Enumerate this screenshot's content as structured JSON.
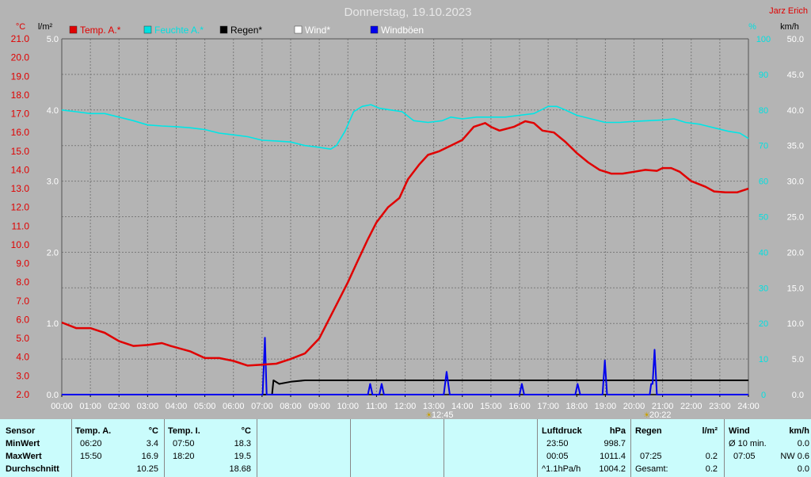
{
  "header": {
    "title": "Donnerstag, 19.10.2023",
    "author": "Jarz Erich"
  },
  "axis_units": {
    "left_temp": "°C",
    "left_rain": "l/m²",
    "right_hum": "%",
    "right_wind": "km/h"
  },
  "legend": [
    {
      "label": "Temp. A.*",
      "color": "#e00000"
    },
    {
      "label": "Feuchte A.*",
      "color": "#00e0e0"
    },
    {
      "label": "Regen*",
      "color": "#000000"
    },
    {
      "label": "Wind*",
      "color": "#ffffff"
    },
    {
      "label": "Windböen",
      "color": "#0000ee"
    }
  ],
  "sun_markers": {
    "sunrise": "12:45",
    "sunset": "20:22"
  },
  "colors": {
    "temp": "#e00000",
    "humidity": "#00e6e6",
    "rain": "#000000",
    "gust": "#0000ee",
    "plot_bg": "#b4b4b4",
    "table_bg": "#cafcfc",
    "title": "#e8e8e8",
    "axis_red": "#e00000",
    "axis_cyan": "#00e0e0"
  },
  "chart_data": {
    "type": "line",
    "title": "Donnerstag, 19.10.2023",
    "x_ticks": [
      "00:00",
      "01:00",
      "02:00",
      "03:00",
      "04:00",
      "05:00",
      "06:00",
      "07:00",
      "08:00",
      "09:00",
      "10:00",
      "11:00",
      "12:00",
      "13:00",
      "14:00",
      "15:00",
      "16:00",
      "17:00",
      "18:00",
      "19:00",
      "20:00",
      "21:00",
      "22:00",
      "23:00",
      "24:00"
    ],
    "x_range_hours": [
      0,
      24
    ],
    "temp_axis": {
      "unit": "°C",
      "range": [
        2.0,
        21.0
      ],
      "ticks": [
        "21.0",
        "20.0",
        "19.0",
        "18.0",
        "17.0",
        "16.0",
        "15.0",
        "14.0",
        "13.0",
        "12.0",
        "11.0",
        "10.0",
        "9.0",
        "8.0",
        "7.0",
        "6.0",
        "5.0",
        "4.0",
        "3.0",
        "2.0"
      ]
    },
    "rain_axis": {
      "unit": "l/m²",
      "range": [
        0.0,
        5.0
      ],
      "ticks": [
        "5.0",
        "4.0",
        "3.0",
        "2.0",
        "1.0",
        "0.0"
      ]
    },
    "humidity_axis": {
      "unit": "%",
      "range": [
        0,
        100
      ],
      "ticks": [
        "100",
        "90",
        "80",
        "70",
        "60",
        "50",
        "40",
        "30",
        "20",
        "10",
        "0"
      ]
    },
    "wind_axis": {
      "unit": "km/h",
      "range": [
        0.0,
        50.0
      ],
      "ticks": [
        "50.0",
        "45.0",
        "40.0",
        "35.0",
        "30.0",
        "25.0",
        "20.0",
        "15.0",
        "10.0",
        "5.0",
        "0.0"
      ]
    },
    "grid": true,
    "series": [
      {
        "name": "Temp. A.*",
        "axis": "temp",
        "points": [
          [
            0.0,
            5.85
          ],
          [
            0.5,
            5.55
          ],
          [
            1.0,
            5.55
          ],
          [
            1.5,
            5.3
          ],
          [
            2.0,
            4.85
          ],
          [
            2.5,
            4.6
          ],
          [
            3.0,
            4.65
          ],
          [
            3.5,
            4.75
          ],
          [
            3.8,
            4.6
          ],
          [
            4.5,
            4.3
          ],
          [
            5.0,
            3.95
          ],
          [
            5.5,
            3.95
          ],
          [
            6.0,
            3.8
          ],
          [
            6.5,
            3.55
          ],
          [
            7.0,
            3.6
          ],
          [
            7.5,
            3.65
          ],
          [
            8.0,
            3.9
          ],
          [
            8.5,
            4.2
          ],
          [
            9.0,
            5.0
          ],
          [
            9.5,
            6.5
          ],
          [
            10.0,
            8.0
          ],
          [
            10.3,
            9.0
          ],
          [
            10.7,
            10.3
          ],
          [
            11.0,
            11.2
          ],
          [
            11.4,
            12.0
          ],
          [
            11.8,
            12.5
          ],
          [
            12.1,
            13.5
          ],
          [
            12.5,
            14.3
          ],
          [
            12.8,
            14.8
          ],
          [
            13.2,
            15.0
          ],
          [
            13.6,
            15.3
          ],
          [
            14.0,
            15.6
          ],
          [
            14.4,
            16.3
          ],
          [
            14.8,
            16.5
          ],
          [
            15.0,
            16.3
          ],
          [
            15.3,
            16.1
          ],
          [
            15.8,
            16.3
          ],
          [
            16.2,
            16.6
          ],
          [
            16.5,
            16.5
          ],
          [
            16.8,
            16.1
          ],
          [
            17.2,
            16.0
          ],
          [
            17.6,
            15.5
          ],
          [
            18.0,
            14.9
          ],
          [
            18.4,
            14.4
          ],
          [
            18.8,
            14.0
          ],
          [
            19.2,
            13.8
          ],
          [
            19.6,
            13.8
          ],
          [
            20.0,
            13.9
          ],
          [
            20.4,
            14.0
          ],
          [
            20.8,
            13.95
          ],
          [
            21.0,
            14.1
          ],
          [
            21.3,
            14.1
          ],
          [
            21.6,
            13.9
          ],
          [
            22.0,
            13.4
          ],
          [
            22.5,
            13.1
          ],
          [
            22.8,
            12.85
          ],
          [
            23.2,
            12.8
          ],
          [
            23.6,
            12.8
          ],
          [
            24.0,
            13.0
          ]
        ]
      },
      {
        "name": "Feuchte A.*",
        "axis": "humidity",
        "points": [
          [
            0.0,
            80.0
          ],
          [
            0.5,
            79.5
          ],
          [
            1.0,
            79.0
          ],
          [
            1.5,
            79.0
          ],
          [
            2.0,
            78.0
          ],
          [
            2.5,
            77.0
          ],
          [
            3.0,
            75.8
          ],
          [
            3.5,
            75.5
          ],
          [
            4.0,
            75.3
          ],
          [
            4.5,
            75.0
          ],
          [
            5.0,
            74.5
          ],
          [
            5.5,
            73.5
          ],
          [
            6.0,
            73.0
          ],
          [
            6.5,
            72.5
          ],
          [
            7.0,
            71.5
          ],
          [
            7.5,
            71.3
          ],
          [
            8.0,
            71.0
          ],
          [
            8.5,
            70.0
          ],
          [
            9.0,
            69.5
          ],
          [
            9.4,
            69.0
          ],
          [
            9.6,
            70.0
          ],
          [
            9.9,
            74.0
          ],
          [
            10.2,
            79.5
          ],
          [
            10.5,
            81.0
          ],
          [
            10.8,
            81.5
          ],
          [
            11.1,
            80.5
          ],
          [
            11.5,
            80.0
          ],
          [
            11.9,
            79.5
          ],
          [
            12.3,
            77.0
          ],
          [
            12.8,
            76.5
          ],
          [
            13.3,
            77.0
          ],
          [
            13.6,
            78.0
          ],
          [
            14.0,
            77.5
          ],
          [
            14.5,
            78.0
          ],
          [
            15.0,
            78.0
          ],
          [
            15.5,
            78.0
          ],
          [
            16.0,
            78.5
          ],
          [
            16.5,
            79.0
          ],
          [
            17.0,
            81.0
          ],
          [
            17.3,
            81.0
          ],
          [
            17.6,
            80.0
          ],
          [
            18.0,
            78.5
          ],
          [
            18.5,
            77.5
          ],
          [
            19.0,
            76.5
          ],
          [
            19.5,
            76.5
          ],
          [
            20.0,
            76.8
          ],
          [
            20.5,
            77.0
          ],
          [
            21.0,
            77.2
          ],
          [
            21.4,
            77.5
          ],
          [
            21.8,
            76.5
          ],
          [
            22.3,
            76.0
          ],
          [
            22.8,
            75.0
          ],
          [
            23.3,
            74.0
          ],
          [
            23.7,
            73.5
          ],
          [
            24.0,
            72.0
          ]
        ]
      },
      {
        "name": "Regen*",
        "axis": "rain",
        "points": [
          [
            0.0,
            0.0
          ],
          [
            7.35,
            0.0
          ],
          [
            7.4,
            0.2
          ],
          [
            7.6,
            0.15
          ],
          [
            8.0,
            0.18
          ],
          [
            8.5,
            0.2
          ],
          [
            9.0,
            0.2
          ],
          [
            24.0,
            0.2
          ]
        ]
      },
      {
        "name": "Windböen",
        "axis": "wind",
        "points": [
          [
            0.0,
            0
          ],
          [
            7.02,
            0
          ],
          [
            7.1,
            8.0
          ],
          [
            7.16,
            0
          ],
          [
            10.7,
            0
          ],
          [
            10.78,
            1.5
          ],
          [
            10.86,
            0
          ],
          [
            11.1,
            0
          ],
          [
            11.18,
            1.5
          ],
          [
            11.26,
            0
          ],
          [
            13.35,
            0
          ],
          [
            13.45,
            3.2
          ],
          [
            13.56,
            0
          ],
          [
            16.0,
            0
          ],
          [
            16.08,
            1.5
          ],
          [
            16.16,
            0
          ],
          [
            17.95,
            0
          ],
          [
            18.03,
            1.5
          ],
          [
            18.12,
            0
          ],
          [
            18.9,
            0
          ],
          [
            18.98,
            4.8
          ],
          [
            19.06,
            0
          ],
          [
            20.55,
            0
          ],
          [
            20.6,
            1.5
          ],
          [
            20.65,
            1.5
          ],
          [
            20.72,
            6.3
          ],
          [
            20.8,
            0
          ],
          [
            24.0,
            0
          ]
        ]
      }
    ]
  },
  "stats": {
    "sensor": {
      "header": "Sensor",
      "rows": [
        "MinWert",
        "MaxWert",
        "Durchschnitt"
      ]
    },
    "temp_a": {
      "header": "Temp. A.",
      "unit": "°C",
      "rows": [
        {
          "time": "06:20",
          "value": "3.4"
        },
        {
          "time": "15:50",
          "value": "16.9"
        },
        {
          "time": "",
          "value": "10.25"
        }
      ]
    },
    "temp_i": {
      "header": "Temp. I.",
      "unit": "°C",
      "rows": [
        {
          "time": "07:50",
          "value": "18.3"
        },
        {
          "time": "18:20",
          "value": "19.5"
        },
        {
          "time": "",
          "value": "18.68"
        }
      ]
    },
    "pressure": {
      "header": "Luftdruck",
      "unit": "hPa",
      "rows": [
        {
          "time": "23:50",
          "value": "998.7"
        },
        {
          "time": "00:05",
          "value": "1011.4"
        },
        {
          "time": "^1.1hPa/h",
          "value": "1004.2"
        }
      ]
    },
    "rain": {
      "header": "Regen",
      "unit": "l/m²",
      "rows": [
        {
          "time": "",
          "value": ""
        },
        {
          "time": "07:25",
          "value": "0.2"
        },
        {
          "time": "Gesamt:",
          "value": "0.2"
        }
      ]
    },
    "wind": {
      "header": "Wind",
      "unit": "km/h",
      "rows": [
        {
          "time": "Ø 10 min.",
          "value": "0.0"
        },
        {
          "time": "07:05",
          "value": "NW 0.6"
        },
        {
          "time": "",
          "value": "0.0"
        }
      ]
    }
  }
}
